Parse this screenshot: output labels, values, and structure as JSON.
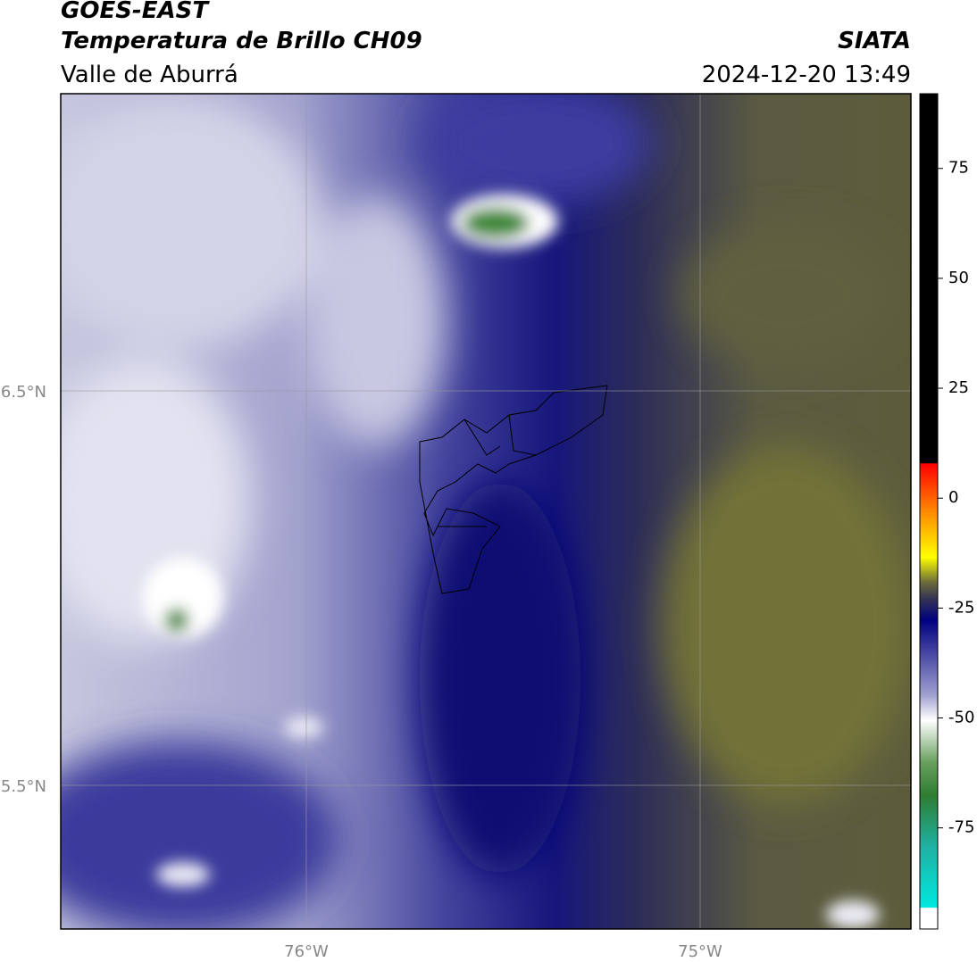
{
  "header": {
    "title": "GOES-EAST",
    "subtitle": "Temperatura de Brillo CH09",
    "region": "Valle de Aburrá",
    "source": "SIATA",
    "datetime": "2024-12-20 13:49"
  },
  "map": {
    "lat_labels": [
      "6.5°N",
      "5.5°N"
    ],
    "lon_labels": [
      "76°W",
      "75°W"
    ]
  },
  "colorbar": {
    "lim": [
      -98,
      92
    ],
    "ticks": [
      75,
      50,
      25,
      0,
      -25,
      -50,
      -75
    ]
  }
}
